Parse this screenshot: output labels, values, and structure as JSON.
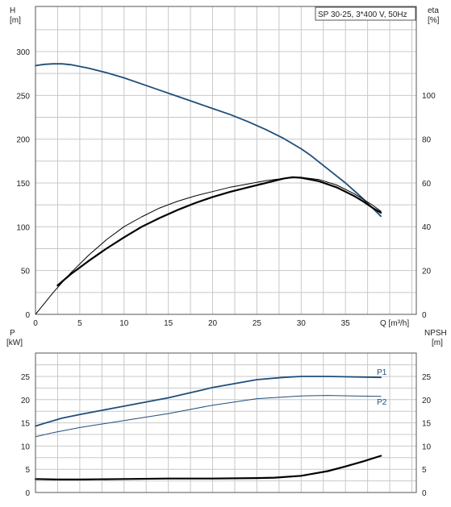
{
  "chart_data": [
    {
      "type": "line",
      "title": "SP 30-25, 3*400 V, 50Hz",
      "xlabel": "Q [m³/h]",
      "x_ticks": [
        0,
        5,
        10,
        15,
        20,
        25,
        30,
        35
      ],
      "xlim": [
        0,
        43
      ],
      "grid": true,
      "y_left": {
        "label": "H",
        "unit": "[m]",
        "ylim": [
          0,
          300
        ],
        "ticks": [
          0,
          50,
          100,
          150,
          200,
          250,
          300
        ]
      },
      "y_right": {
        "label": "eta",
        "unit": "[%]",
        "ylim": [
          0,
          100
        ],
        "ticks": [
          0,
          20,
          40,
          60,
          80,
          100
        ]
      },
      "series": [
        {
          "id": "H",
          "axis": "left",
          "color": "#1f4e7a",
          "x": [
            0,
            1,
            2,
            3,
            4,
            6,
            8,
            10,
            12,
            14,
            16,
            18,
            20,
            22,
            24,
            26,
            28,
            30,
            31,
            32,
            33,
            34,
            35,
            36,
            37,
            38,
            39
          ],
          "y": [
            284,
            285.5,
            286,
            286,
            285,
            281,
            276,
            270,
            263,
            256,
            249,
            242,
            235,
            228,
            220,
            211,
            201,
            189,
            182,
            174,
            166,
            158,
            150,
            141,
            132,
            122,
            112
          ]
        },
        {
          "id": "eta_thin",
          "axis": "right",
          "color": "#000000",
          "x": [
            0,
            2,
            4,
            6,
            8,
            10,
            12,
            14,
            16,
            18,
            20,
            22,
            24,
            26,
            28,
            30,
            32,
            34,
            36,
            37,
            38,
            39
          ],
          "y": [
            0,
            10,
            19,
            27,
            34,
            40,
            44.5,
            48.5,
            51.5,
            54,
            56,
            58,
            59.5,
            61,
            62,
            62.5,
            61.5,
            59,
            55,
            52.5,
            50,
            47
          ]
        },
        {
          "id": "eta_thick",
          "axis": "left",
          "color": "#000000",
          "x": [
            2.5,
            4,
            6,
            8,
            10,
            12,
            14,
            16,
            18,
            20,
            22,
            24,
            26,
            28,
            29,
            30,
            32,
            34,
            36,
            37,
            38,
            39
          ],
          "y": [
            33,
            46,
            61,
            75,
            88,
            100,
            110,
            119,
            127,
            134,
            140,
            145,
            150,
            155,
            156.5,
            156,
            152,
            145,
            135,
            129,
            122,
            116
          ]
        }
      ]
    },
    {
      "type": "line",
      "title": "",
      "xlim": [
        0,
        43
      ],
      "grid": true,
      "y_left": {
        "label": "P",
        "unit": "[kW]",
        "ylim": [
          0,
          30
        ],
        "ticks": [
          0,
          5,
          10,
          15,
          20,
          25
        ]
      },
      "y_right": {
        "label": "NPSH",
        "unit": "[m]",
        "ylim": [
          0,
          30
        ],
        "ticks": [
          0,
          5,
          10,
          15,
          20,
          25
        ]
      },
      "series": [
        {
          "id": "P1",
          "name": "P1",
          "axis": "left",
          "color": "#1f4e7a",
          "x": [
            0,
            1,
            3,
            5,
            10,
            15,
            20,
            25,
            28,
            30,
            33,
            36,
            39
          ],
          "y": [
            14.3,
            14.9,
            16.0,
            16.8,
            18.6,
            20.4,
            22.6,
            24.3,
            24.8,
            25.0,
            25.0,
            24.9,
            24.8
          ]
        },
        {
          "id": "P2",
          "name": "P2",
          "axis": "left",
          "color": "#1f4e7a",
          "x": [
            0,
            2,
            5,
            10,
            15,
            20,
            25,
            30,
            33,
            36,
            39
          ],
          "y": [
            12.0,
            12.9,
            14.0,
            15.5,
            17.0,
            18.8,
            20.2,
            20.8,
            20.9,
            20.8,
            20.7
          ]
        },
        {
          "id": "NPSH",
          "axis": "right",
          "color": "#000000",
          "x": [
            0,
            2.5,
            5,
            10,
            15,
            20,
            25,
            27,
            30,
            33,
            35,
            37,
            39
          ],
          "y": [
            2.9,
            2.8,
            2.8,
            2.9,
            3.0,
            3.0,
            3.1,
            3.2,
            3.6,
            4.6,
            5.6,
            6.7,
            7.9
          ]
        }
      ]
    }
  ]
}
